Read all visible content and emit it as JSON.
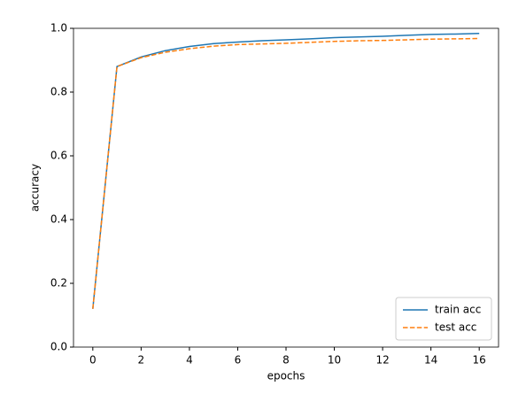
{
  "chart_data": {
    "type": "line",
    "x": [
      0,
      1,
      2,
      3,
      4,
      5,
      6,
      7,
      8,
      9,
      10,
      11,
      12,
      13,
      14,
      15,
      16
    ],
    "series": [
      {
        "name": "train acc",
        "color": "#1f77b4",
        "dash": "solid",
        "values": [
          0.12,
          0.88,
          0.91,
          0.93,
          0.943,
          0.952,
          0.957,
          0.961,
          0.964,
          0.967,
          0.971,
          0.973,
          0.975,
          0.978,
          0.981,
          0.982,
          0.984
        ]
      },
      {
        "name": "test acc",
        "color": "#ff7f0e",
        "dash": "dashed",
        "values": [
          0.12,
          0.88,
          0.908,
          0.925,
          0.936,
          0.944,
          0.949,
          0.951,
          0.953,
          0.956,
          0.959,
          0.961,
          0.962,
          0.964,
          0.966,
          0.967,
          0.968
        ]
      }
    ],
    "xlabel": "epochs",
    "ylabel": "accuracy",
    "xlim": [
      -0.8,
      16.8
    ],
    "xticks": [
      0,
      2,
      4,
      6,
      8,
      10,
      12,
      14,
      16
    ],
    "ylim": [
      0,
      1
    ],
    "yticks": [
      {
        "value": 0,
        "label": "0.0"
      },
      0.2,
      0.4,
      0.6,
      0.8,
      {
        "value": 1,
        "label": "1.0"
      }
    ],
    "legend": "lower right"
  }
}
